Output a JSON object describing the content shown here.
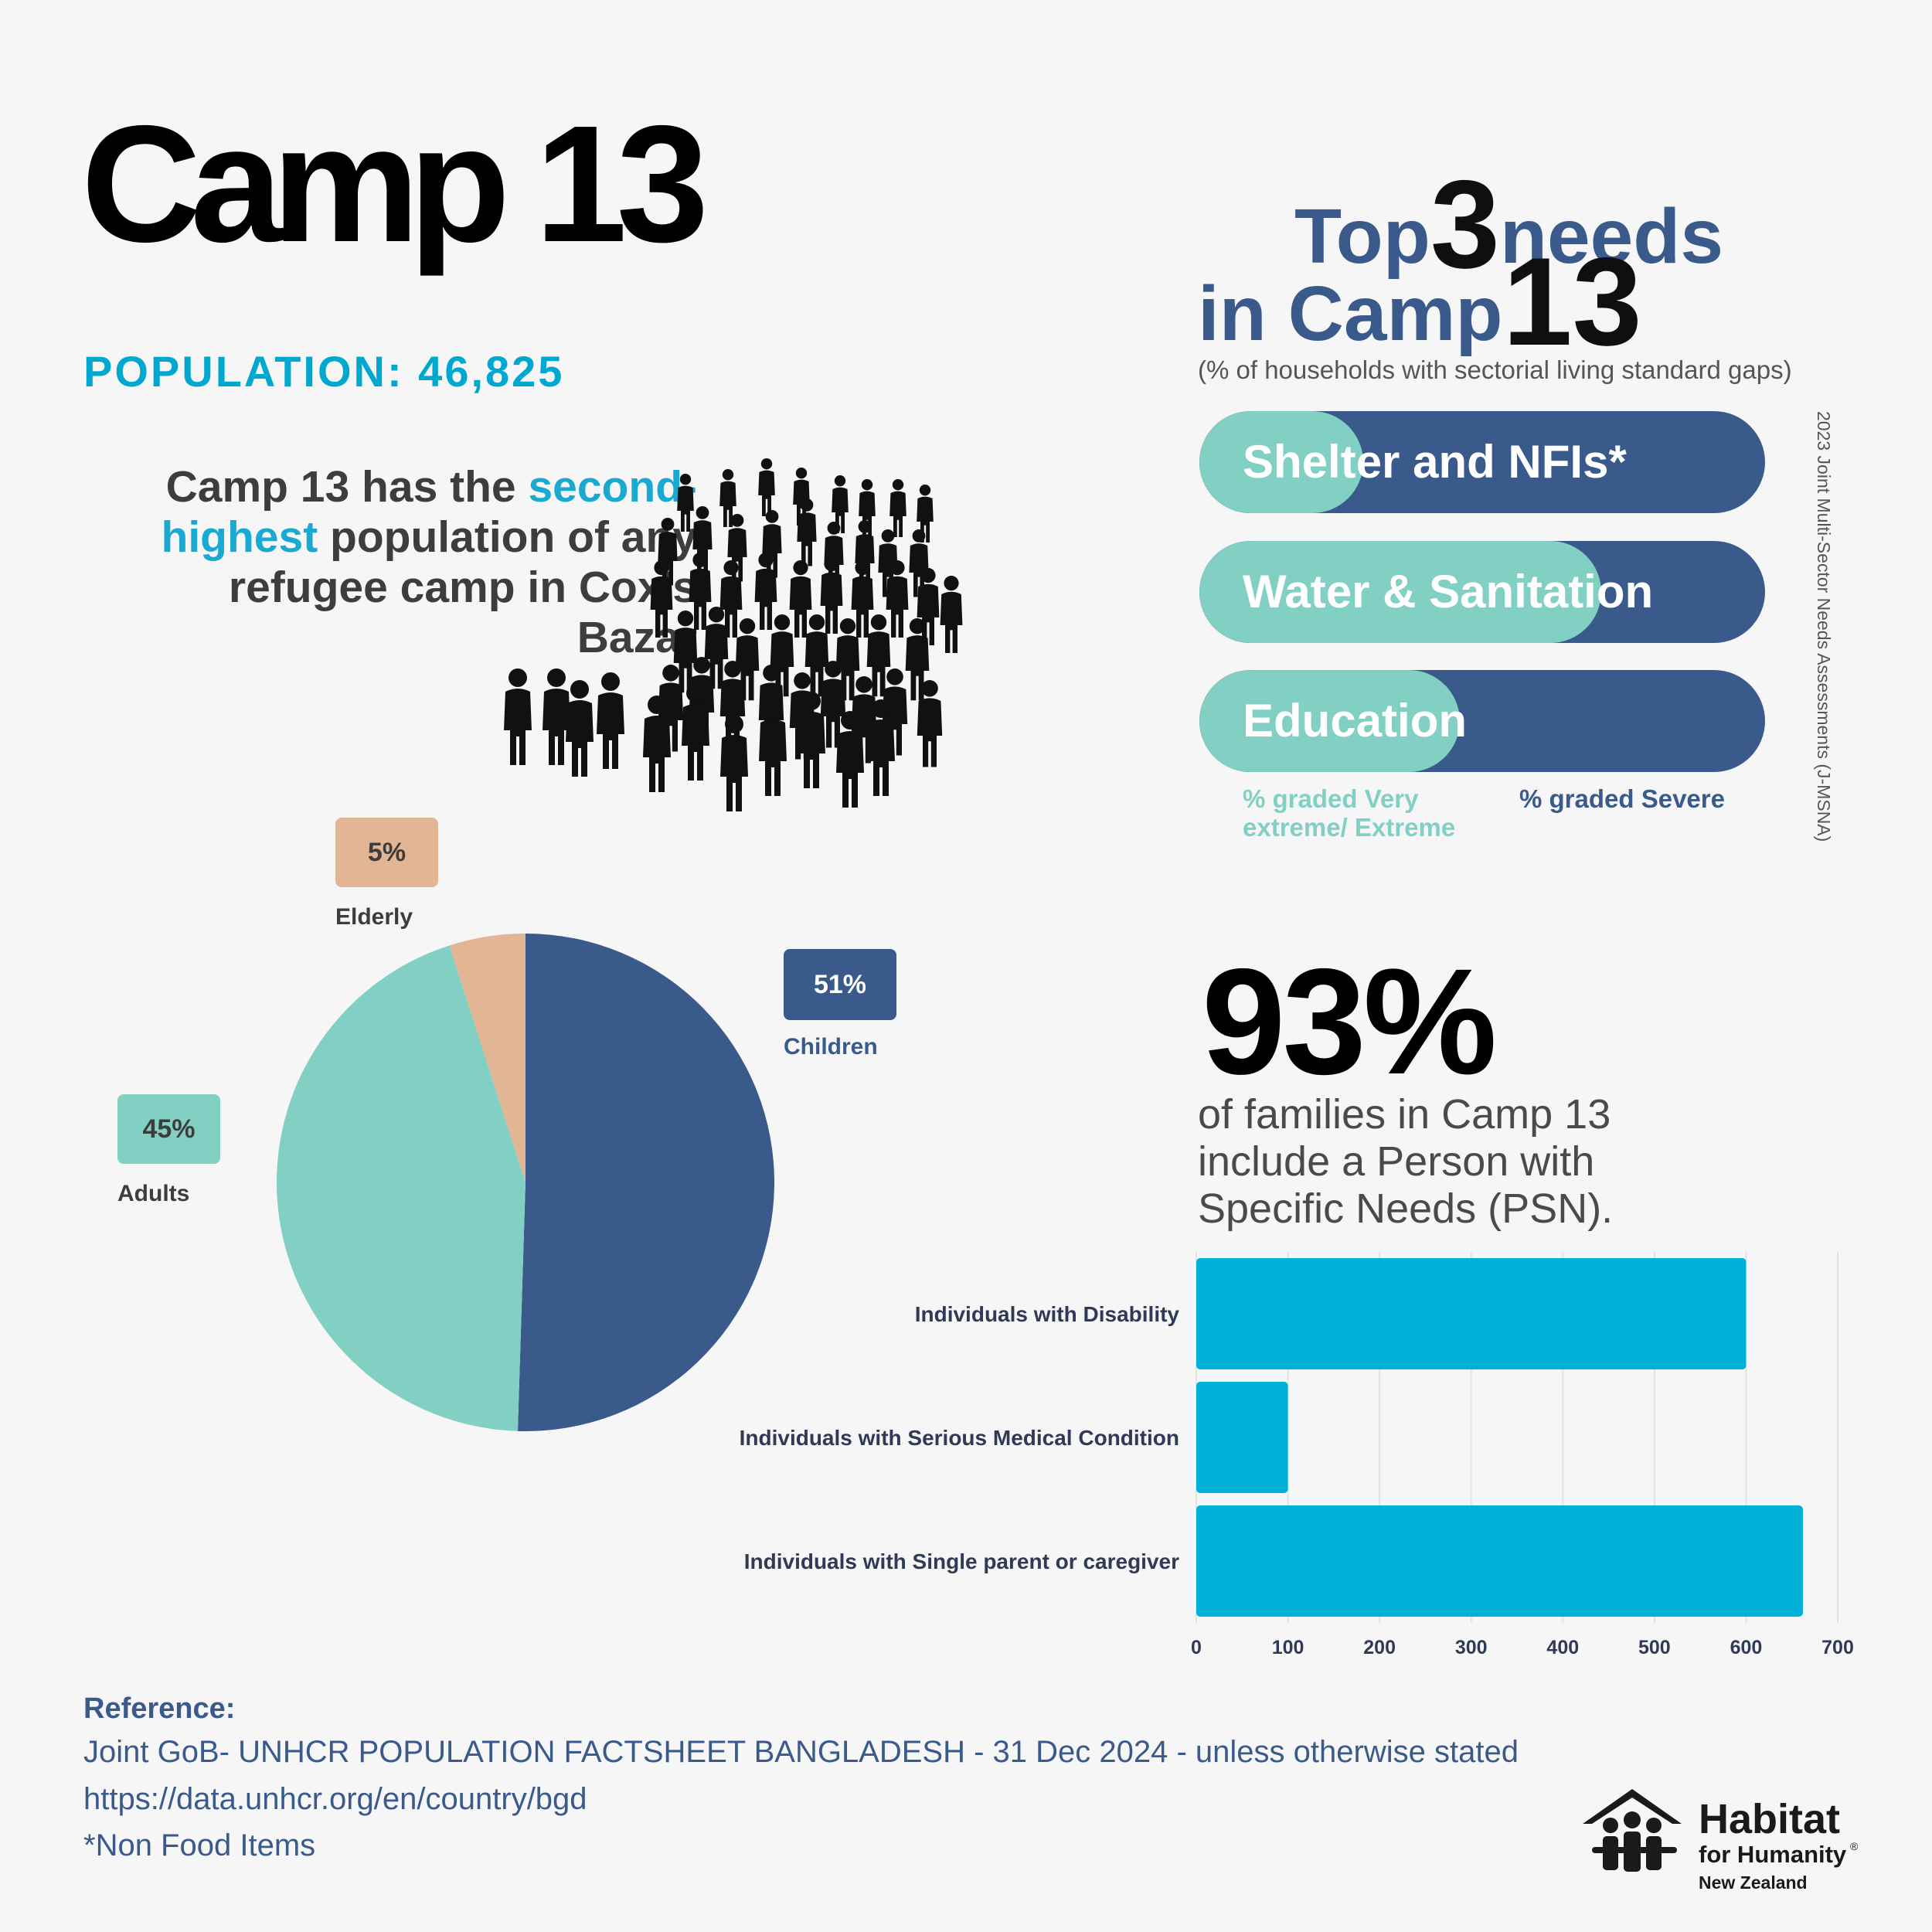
{
  "title": "Camp 13",
  "population_label": "POPULATION: 46,825",
  "intro": {
    "part1": "Camp 13 has the ",
    "highlight1": "second-",
    "highlight2": "highest",
    "part2": " population of any refugee camp in Cox’s Bazar"
  },
  "needs": {
    "title_top": "Top",
    "title_three": "3",
    "title_needs": "needs",
    "title_in": "in Camp",
    "title_13": "13",
    "subtitle": "(% of households with sectorial living standard gaps)",
    "legend_extreme": "% graded Very extreme/ Extreme",
    "legend_severe": "% graded Severe",
    "source_note": "2023 Joint Multi-Sector Needs Assessments (J-MSNA)",
    "colors": {
      "extreme": "#82cfc4",
      "severe": "#3a5a8c"
    }
  },
  "psn": {
    "big_pct": "93%",
    "text": "of families in Camp 13 include a Person with Specific Needs (PSN)."
  },
  "chart_data": [
    {
      "type": "bar",
      "orientation": "horizontal",
      "title": "Top 3 needs in Camp 13",
      "categories": [
        "Shelter and NFIs*",
        "Water & Sanitation",
        "Education"
      ],
      "series": [
        {
          "name": "% graded Very extreme/ Extreme",
          "values": [
            29,
            71,
            46
          ]
        },
        {
          "name": "% graded Severe",
          "values": [
            71,
            29,
            54
          ]
        }
      ],
      "stacked": true,
      "ylim": [
        0,
        100
      ]
    },
    {
      "type": "pie",
      "labels": [
        "Children",
        "Adults",
        "Elderly"
      ],
      "values": [
        51,
        45,
        5
      ],
      "value_labels": [
        "51%",
        "45%",
        "5%"
      ],
      "colors": [
        "#3a5a8c",
        "#82cfc4",
        "#e2b595"
      ]
    },
    {
      "type": "bar",
      "orientation": "horizontal",
      "categories": [
        "Individuals with Disability",
        "Individuals with Serious Medical Condition",
        "Individuals with Single parent or caregiver"
      ],
      "values": [
        600,
        100,
        662
      ],
      "xlim": [
        0,
        700
      ],
      "xticks": [
        0,
        100,
        200,
        300,
        400,
        500,
        600,
        700
      ],
      "grid": true,
      "color": "#00b1d8"
    }
  ],
  "reference": {
    "heading": "Reference:",
    "lines": [
      "Joint GoB- UNHCR POPULATION FACTSHEET BANGLADESH - 31 Dec 2024 - unless otherwise stated",
      "https://data.unhcr.org/en/country/bgd",
      "*Non Food Items"
    ]
  },
  "logo": {
    "line1": "Habitat",
    "line2": "for Humanity",
    "line3": "New Zealand",
    "registered": "®"
  }
}
